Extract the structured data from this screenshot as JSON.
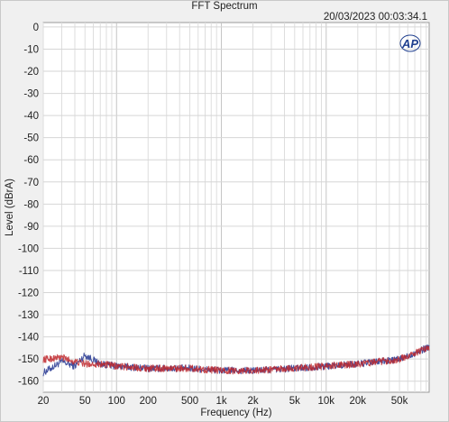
{
  "chart_data": {
    "type": "line",
    "title": "FFT Spectrum",
    "timestamp": "20/03/2023 00:03:34.1",
    "logo_text": "AP",
    "xlabel": "Frequency (Hz)",
    "ylabel": "Level (dBrA)",
    "x_scale": "log",
    "xlim": [
      20,
      96000
    ],
    "ylim": [
      -165,
      2
    ],
    "grid": true,
    "xticks": [
      20,
      50,
      100,
      200,
      500,
      1000,
      2000,
      5000,
      10000,
      20000,
      50000
    ],
    "xtick_labels": [
      "20",
      "50",
      "100",
      "200",
      "500",
      "1k",
      "2k",
      "5k",
      "10k",
      "20k",
      "50k"
    ],
    "yticks": [
      0,
      -10,
      -20,
      -30,
      -40,
      -50,
      -60,
      -70,
      -80,
      -90,
      -100,
      -110,
      -120,
      -130,
      -140,
      -150,
      -160
    ],
    "ytick_labels": [
      "0",
      "-10",
      "-20",
      "-30",
      "-40",
      "-50",
      "-60",
      "-70",
      "-80",
      "-90",
      "-100",
      "-110",
      "-120",
      "-130",
      "-140",
      "-150",
      "-160"
    ],
    "series": [
      {
        "color": "#3a4a9c",
        "x": [
          20,
          30,
          40,
          50,
          70,
          100,
          200,
          500,
          1000,
          2000,
          5000,
          10000,
          20000,
          50000,
          80000,
          96000
        ],
        "y": [
          -160,
          -155,
          -157,
          -152,
          -156,
          -157,
          -158,
          -158,
          -159,
          -159,
          -158,
          -157,
          -156,
          -154,
          -150,
          -148
        ]
      },
      {
        "color": "#c0282d",
        "x": [
          20,
          30,
          40,
          50,
          70,
          100,
          200,
          500,
          1000,
          2000,
          5000,
          10000,
          20000,
          50000,
          80000,
          96000
        ],
        "y": [
          -154,
          -153,
          -155,
          -156,
          -156,
          -157,
          -158,
          -158,
          -159,
          -159,
          -158,
          -157,
          -156,
          -154,
          -150,
          -149
        ]
      }
    ]
  }
}
